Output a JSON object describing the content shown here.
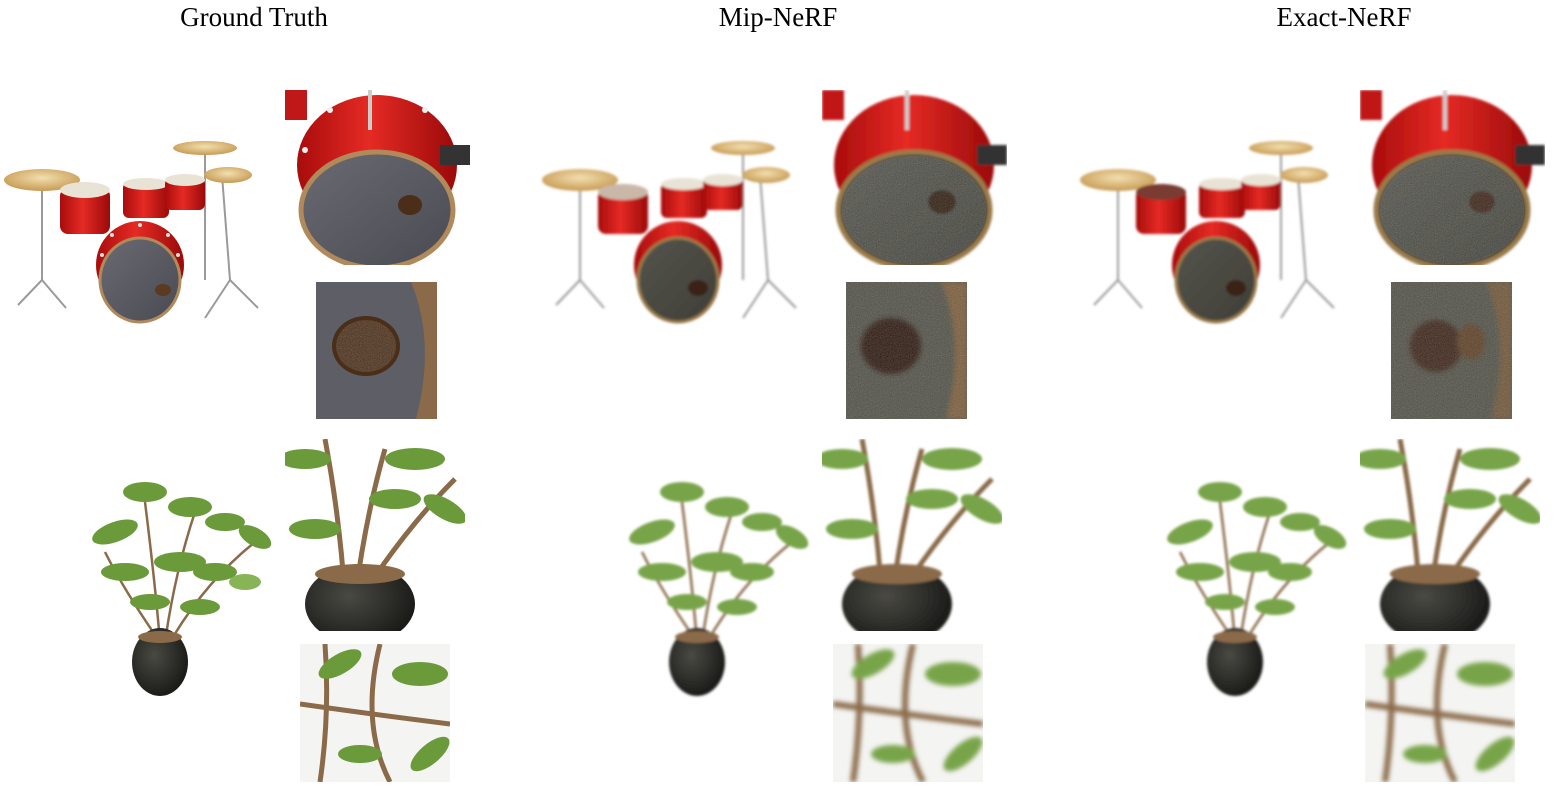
{
  "columns": [
    {
      "title": "Ground Truth",
      "variant": "gt"
    },
    {
      "title": "Mip-NeRF",
      "variant": "mip"
    },
    {
      "title": "Exact-NeRF",
      "variant": "exact"
    }
  ],
  "colors": {
    "drum_red": "#d81e1e",
    "drum_head_gt": "#5c5c64",
    "drum_head_blur": "#4a4a44",
    "cymbal": "#d8b878",
    "leaf": "#6a9a3a",
    "pot": "#2a2a28",
    "stem": "#8a6a48"
  }
}
